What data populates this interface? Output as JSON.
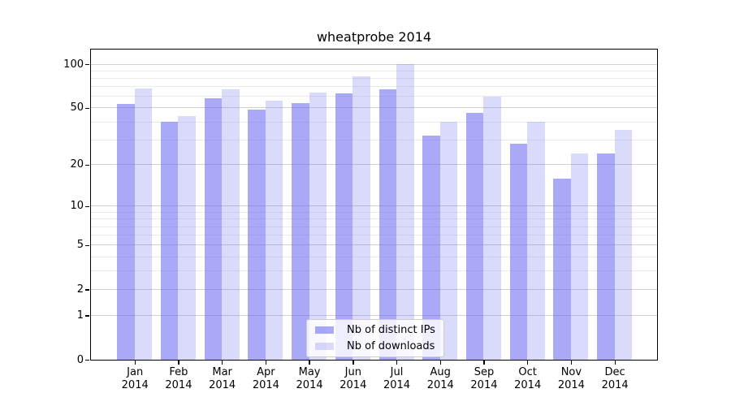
{
  "title": "wheatprobe 2014",
  "chart_data": {
    "type": "bar",
    "title": "wheatprobe 2014",
    "categories": [
      "Jan 2014",
      "Feb 2014",
      "Mar 2014",
      "Apr 2014",
      "May 2014",
      "Jun 2014",
      "Jul 2014",
      "Aug 2014",
      "Sep 2014",
      "Oct 2014",
      "Nov 2014",
      "Dec 2014"
    ],
    "series": [
      {
        "name": "Nb of distinct IPs",
        "key": "ips",
        "color": "#6666f0",
        "fill": "#6666f08f",
        "values": [
          53,
          40,
          58,
          49,
          54,
          63,
          67,
          32,
          46,
          28,
          16,
          24
        ]
      },
      {
        "name": "Nb of downloads",
        "key": "downloads",
        "color": "#6666f0",
        "fill": "#6666f03d",
        "values": [
          68,
          44,
          67,
          56,
          64,
          83,
          100,
          40,
          60,
          40,
          24,
          35
        ]
      }
    ],
    "y_scale": "log1p",
    "y_max": 126,
    "y_ticks": [
      0,
      1,
      2,
      5,
      10,
      20,
      50,
      100
    ],
    "y_minor_gridlines": [
      3,
      4,
      6,
      7,
      8,
      9,
      30,
      40,
      60,
      70,
      80,
      90
    ],
    "grid": true,
    "legend_position": "lower center",
    "colors": {
      "grid_major": "#d0d0d0",
      "grid_minor": "#ebebeb",
      "spine": "#000000",
      "text": "#000000",
      "legend_border": "#cccccc"
    }
  }
}
